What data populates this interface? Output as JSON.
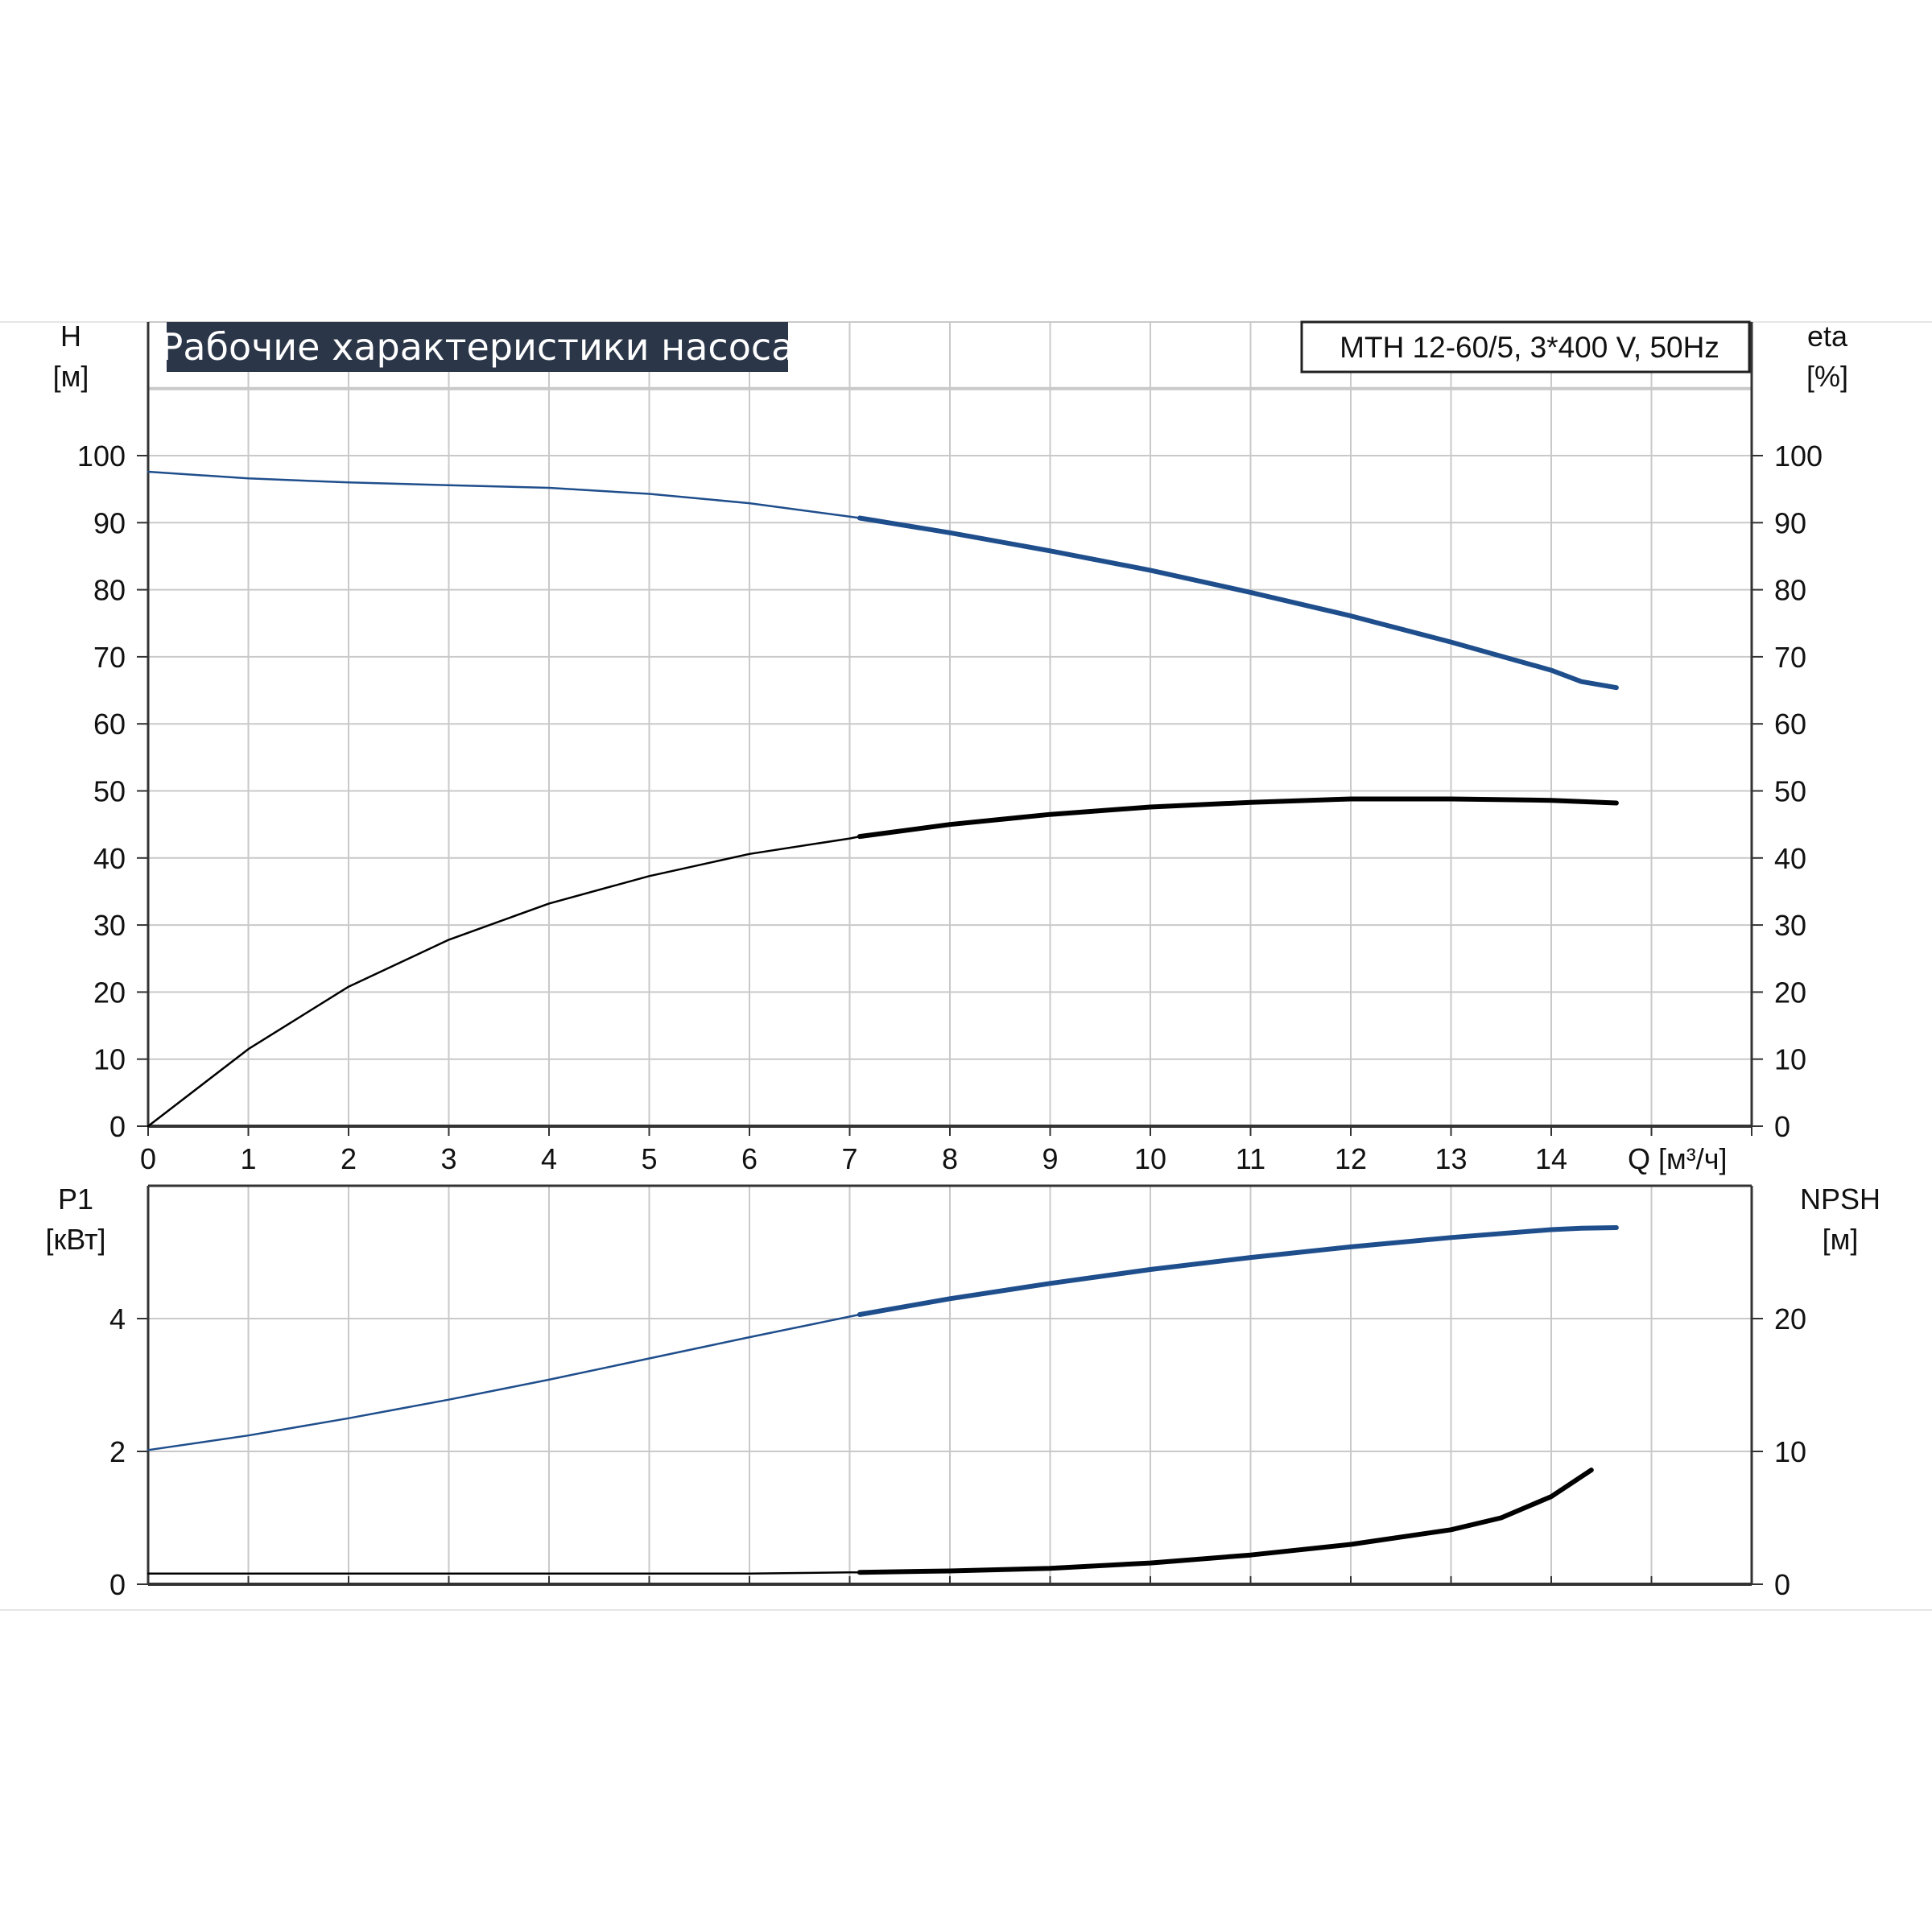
{
  "chart_data": {
    "type": "line",
    "title": "Рабочие характеристики насоса",
    "model": "MTH 12-60/5, 3*400 V, 50Hz",
    "x_axis": {
      "label": "Q [м³/ч]",
      "ticks": [
        "0",
        "1",
        "2",
        "3",
        "4",
        "5",
        "6",
        "7",
        "8",
        "9",
        "10",
        "11",
        "12",
        "13",
        "14"
      ],
      "range": [
        0,
        16
      ]
    },
    "top_panel": {
      "left_axis": {
        "name": "H",
        "unit": "[м]",
        "range": [
          0,
          100
        ],
        "ticks": [
          "0",
          "10",
          "20",
          "30",
          "40",
          "50",
          "60",
          "70",
          "80",
          "90",
          "100"
        ]
      },
      "right_axis": {
        "name": "eta",
        "unit": "[%]",
        "range": [
          0,
          100
        ],
        "ticks": [
          "0",
          "10",
          "20",
          "30",
          "40",
          "50",
          "60",
          "70",
          "80",
          "90",
          "100"
        ]
      },
      "grid": true,
      "series": [
        {
          "axis": "left",
          "color": "#1f4e8c",
          "bold_from_x": 7.1,
          "x": [
            0,
            1,
            2,
            3,
            4,
            5,
            6,
            7,
            7.1,
            8,
            9,
            10,
            11,
            12,
            13,
            14,
            14.3,
            14.65
          ],
          "y": [
            97.6,
            96.6,
            96.0,
            95.6,
            95.2,
            94.3,
            92.9,
            90.9,
            90.7,
            88.5,
            85.8,
            82.9,
            79.6,
            76.1,
            72.2,
            68.0,
            66.3,
            65.4
          ]
        },
        {
          "axis": "right",
          "color": "#000000",
          "bold_from_x": 7.1,
          "x": [
            0,
            1,
            2,
            3,
            4,
            5,
            6,
            7,
            7.1,
            8,
            9,
            10,
            11,
            12,
            13,
            14,
            14.65
          ],
          "y": [
            0,
            11.5,
            20.8,
            27.8,
            33.2,
            37.3,
            40.6,
            42.9,
            43.2,
            45.0,
            46.5,
            47.6,
            48.3,
            48.8,
            48.8,
            48.6,
            48.2
          ]
        }
      ]
    },
    "bottom_panel": {
      "left_axis": {
        "name": "P1",
        "unit": "[кВт]",
        "range": [
          0,
          6
        ],
        "ticks": [
          "0",
          "2",
          "4"
        ]
      },
      "right_axis": {
        "name": "NPSH",
        "unit": "[м]",
        "range": [
          0,
          30
        ],
        "ticks": [
          "0",
          "10",
          "20"
        ]
      },
      "grid": true,
      "series": [
        {
          "axis": "left",
          "color": "#1f4e8c",
          "bold_from_x": 7.1,
          "x": [
            0,
            1,
            2,
            3,
            4,
            5,
            6,
            7,
            7.1,
            8,
            9,
            10,
            11,
            12,
            13,
            14,
            14.3,
            14.65
          ],
          "y": [
            2.02,
            2.24,
            2.5,
            2.78,
            3.08,
            3.4,
            3.72,
            4.03,
            4.06,
            4.3,
            4.53,
            4.74,
            4.92,
            5.08,
            5.22,
            5.34,
            5.36,
            5.37
          ]
        },
        {
          "axis": "right",
          "color": "#000000",
          "bold_from_x": 7.1,
          "x": [
            0,
            2,
            4,
            6,
            7,
            7.1,
            8,
            9,
            10,
            11,
            12,
            13,
            13.5,
            14,
            14.4
          ],
          "y": [
            0.8,
            0.8,
            0.8,
            0.8,
            0.9,
            0.9,
            1.0,
            1.2,
            1.6,
            2.2,
            3.0,
            4.1,
            5.0,
            6.6,
            8.6
          ]
        }
      ]
    }
  }
}
